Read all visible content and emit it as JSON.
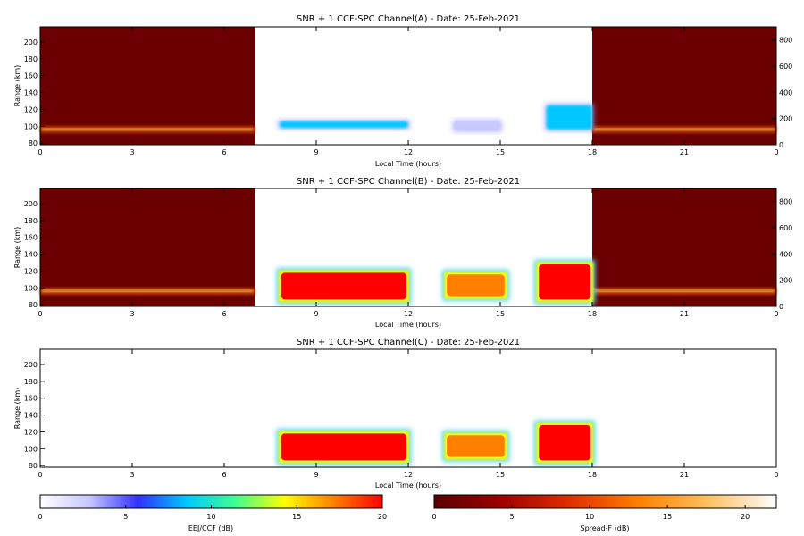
{
  "colors": {
    "night_fill": "#6a0000",
    "ccf_scale": [
      "#ffffff",
      "#c8c8ff",
      "#3030ff",
      "#00c8ff",
      "#40ff90",
      "#ffff00",
      "#ff8000",
      "#ff0000"
    ],
    "spreadf_scale": [
      "#5a0000",
      "#a00000",
      "#e03000",
      "#ff8000",
      "#ffc060",
      "#ffffff"
    ]
  },
  "chart_data": [
    {
      "type": "heatmap",
      "title": "SNR + 1 CCF-SPC Channel(A) - Date: 25-Feb-2021",
      "xlabel": "Local Time (hours)",
      "ylabel": "Range (km)",
      "xlim": [
        0,
        24
      ],
      "ylim": [
        78,
        218
      ],
      "right_ylim": [
        0,
        900
      ],
      "x_ticks": [
        "0",
        "3",
        "6",
        "9",
        "12",
        "15",
        "18",
        "21",
        "0"
      ],
      "y_ticks": [
        "80",
        "100",
        "120",
        "140",
        "160",
        "180",
        "200"
      ],
      "right_ticks": [
        "0",
        "200",
        "400",
        "600",
        "800"
      ],
      "night_periods_hours": [
        [
          0,
          7
        ],
        [
          18,
          24
        ]
      ],
      "echo_regions": [
        {
          "t": [
            7.8,
            12.0
          ],
          "range_km": [
            98,
            106
          ],
          "snr_db": 8
        },
        {
          "t": [
            13.5,
            15.0
          ],
          "range_km": [
            95,
            106
          ],
          "snr_db": 4
        },
        {
          "t": [
            16.5,
            18.0
          ],
          "range_km": [
            96,
            125
          ],
          "snr_db": 9
        }
      ]
    },
    {
      "type": "heatmap",
      "title": "SNR + 1 CCF-SPC Channel(B) - Date: 25-Feb-2021",
      "xlabel": "Local Time (hours)",
      "ylabel": "Range (km)",
      "xlim": [
        0,
        24
      ],
      "ylim": [
        78,
        218
      ],
      "right_ylim": [
        0,
        900
      ],
      "x_ticks": [
        "0",
        "3",
        "6",
        "9",
        "12",
        "15",
        "18",
        "21",
        "0"
      ],
      "y_ticks": [
        "80",
        "100",
        "120",
        "140",
        "160",
        "180",
        "200"
      ],
      "right_ticks": [
        "0",
        "200",
        "400",
        "600",
        "800"
      ],
      "night_periods_hours": [
        [
          0,
          7
        ],
        [
          18,
          24
        ]
      ],
      "echo_regions": [
        {
          "t": [
            7.8,
            12.0
          ],
          "range_km": [
            84,
            120
          ],
          "snr_db": 20
        },
        {
          "t": [
            13.2,
            15.2
          ],
          "range_km": [
            88,
            118
          ],
          "snr_db": 18
        },
        {
          "t": [
            16.2,
            18.0
          ],
          "range_km": [
            84,
            130
          ],
          "snr_db": 20
        }
      ]
    },
    {
      "type": "heatmap",
      "title": "SNR + 1 CCF-SPC Channel(C) - Date: 25-Feb-2021",
      "xlabel": "Local Time (hours)",
      "ylabel": "Range (km)",
      "xlim": [
        0,
        24
      ],
      "ylim": [
        78,
        218
      ],
      "x_ticks": [
        "0",
        "3",
        "6",
        "9",
        "12",
        "15",
        "18",
        "21",
        "0"
      ],
      "y_ticks": [
        "80",
        "100",
        "120",
        "140",
        "160",
        "180",
        "200"
      ],
      "echo_regions": [
        {
          "t": [
            7.8,
            12.0
          ],
          "range_km": [
            84,
            120
          ],
          "snr_db": 20
        },
        {
          "t": [
            13.2,
            15.2
          ],
          "range_km": [
            88,
            118
          ],
          "snr_db": 18
        },
        {
          "t": [
            16.2,
            18.0
          ],
          "range_km": [
            84,
            130
          ],
          "snr_db": 20
        }
      ]
    }
  ],
  "colorbars": [
    {
      "label": "EEJ/CCF (dB)",
      "ticks": [
        "0",
        "5",
        "10",
        "15",
        "20"
      ],
      "range": [
        0,
        20
      ]
    },
    {
      "label": "Spread-F (dB)",
      "ticks": [
        "0",
        "5",
        "10",
        "15",
        "20"
      ],
      "range": [
        0,
        22
      ]
    }
  ]
}
